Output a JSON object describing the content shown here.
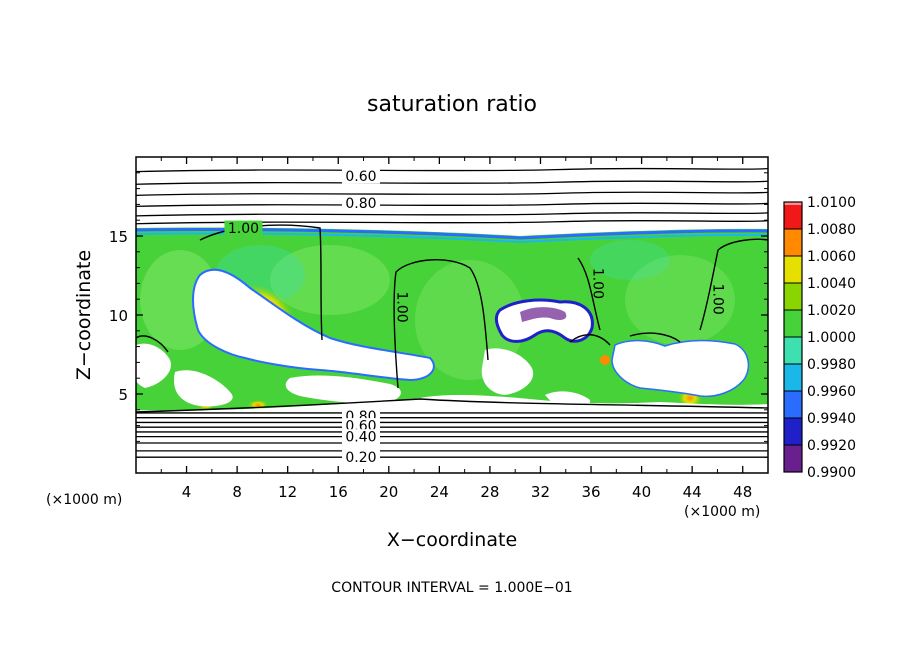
{
  "chart_data": {
    "type": "heatmap",
    "title": "saturation ratio",
    "xlabel": "X−coordinate",
    "ylabel": "Z−coordinate",
    "x_unit": "(×1000 m)",
    "z_unit": "(×1000 m)",
    "xlim": [
      0,
      50
    ],
    "ylim": [
      0,
      20
    ],
    "x_ticks": [
      4,
      8,
      12,
      16,
      20,
      24,
      28,
      32,
      36,
      40,
      44,
      48
    ],
    "x_tick_labels": [
      "4",
      "8",
      "12",
      "16",
      "20",
      "24",
      "28",
      "32",
      "36",
      "40",
      "44",
      "48"
    ],
    "y_ticks": [
      5,
      10,
      15
    ],
    "y_tick_labels": [
      "5",
      "10",
      "15"
    ],
    "colorbar": {
      "range": [
        0.99,
        1.01
      ],
      "tick_values": [
        0.99,
        0.992,
        0.994,
        0.996,
        0.998,
        1.0,
        1.002,
        1.004,
        1.006,
        1.008,
        1.01
      ],
      "tick_labels": [
        "0.9900",
        "0.9920",
        "0.9940",
        "0.9960",
        "0.9980",
        "1.0000",
        "1.0020",
        "1.0040",
        "1.0060",
        "1.0080",
        "1.0100"
      ],
      "colors": [
        "#6a1f8e",
        "#2020c8",
        "#2a6cff",
        "#1ab8e8",
        "#3ee0b0",
        "#48d23a",
        "#8ad400",
        "#e6e000",
        "#ff8a00",
        "#f01818",
        "#ff8c8c"
      ]
    },
    "contour_interval_label": "CONTOUR INTERVAL = 1.000E−01",
    "contour_labels": [
      {
        "text": "0.60",
        "x": 17.8,
        "z": 18.8
      },
      {
        "text": "0.80",
        "x": 17.8,
        "z": 17.1
      },
      {
        "text": "1.00",
        "x": 8.5,
        "z": 15.5
      },
      {
        "text": "1.00",
        "x": 21.0,
        "z": 10.5
      },
      {
        "text": "1.00",
        "x": 36.5,
        "z": 12.0
      },
      {
        "text": "1.00",
        "x": 46.0,
        "z": 11.0
      },
      {
        "text": "0.80",
        "x": 17.8,
        "z": 3.6
      },
      {
        "text": "0.60",
        "x": 17.8,
        "z": 3.0
      },
      {
        "text": "0.40",
        "x": 17.8,
        "z": 2.3
      },
      {
        "text": "0.20",
        "x": 17.8,
        "z": 1.0
      }
    ],
    "upper_contour_levels_z": [
      19.2,
      18.4,
      17.7,
      17.0,
      16.4,
      15.9
    ],
    "lower_contour_levels_z": [
      3.8,
      3.5,
      3.2,
      2.9,
      2.6,
      2.3,
      1.9,
      1.4,
      1.0
    ],
    "cloud_layer": {
      "z_bottom": 4.0,
      "z_top": 15.3
    }
  }
}
